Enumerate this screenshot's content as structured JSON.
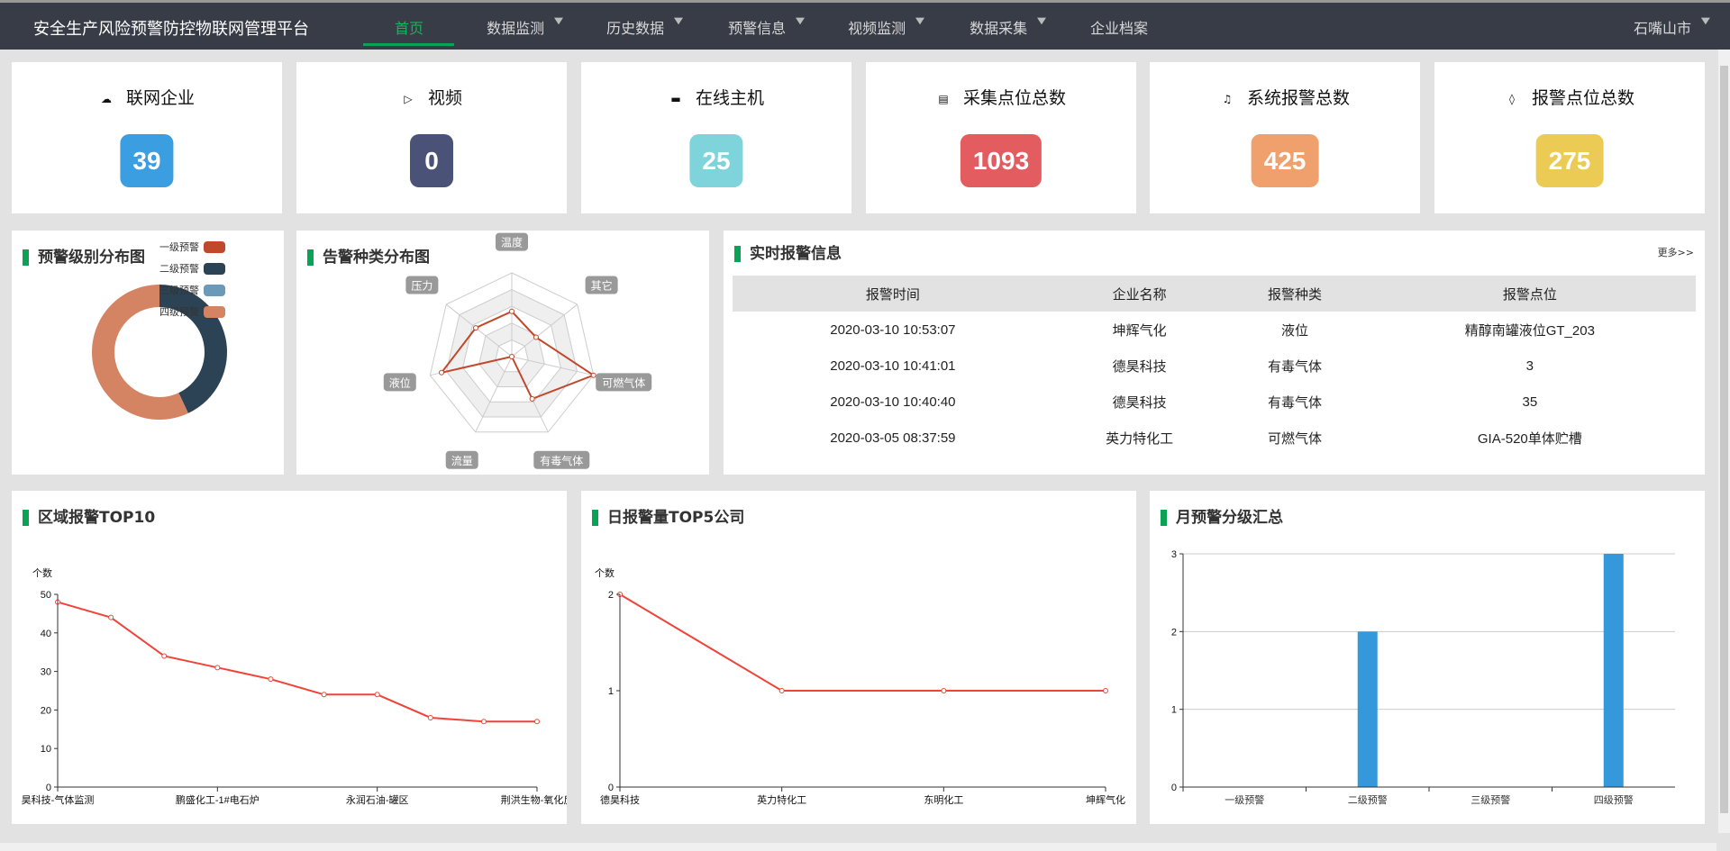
{
  "nav": {
    "title": "安全生产风险预警防控物联网管理平台",
    "items": [
      {
        "label": "首页",
        "dropdown": false,
        "active": true
      },
      {
        "label": "数据监测",
        "dropdown": true
      },
      {
        "label": "历史数据",
        "dropdown": true
      },
      {
        "label": "预警信息",
        "dropdown": true
      },
      {
        "label": "视频监测",
        "dropdown": true
      },
      {
        "label": "数据采集",
        "dropdown": true
      },
      {
        "label": "企业档案",
        "dropdown": false
      }
    ],
    "city": "石嘴山市"
  },
  "stats": [
    {
      "label": "联网企业",
      "value": "39",
      "color": "#3a9ee0",
      "icon": "cloud-upload-icon"
    },
    {
      "label": "视频",
      "value": "0",
      "color": "#4a5278",
      "icon": "video-icon"
    },
    {
      "label": "在线主机",
      "value": "25",
      "color": "#7fd3db",
      "icon": "monitor-icon"
    },
    {
      "label": "采集点位总数",
      "value": "1093",
      "color": "#e35d60",
      "icon": "calendar-icon"
    },
    {
      "label": "系统报警总数",
      "value": "425",
      "color": "#f0a06c",
      "icon": "bell-icon"
    },
    {
      "label": "报警点位总数",
      "value": "275",
      "color": "#eccb55",
      "icon": "speaker-icon"
    }
  ],
  "donut": {
    "title": "预警级别分布图",
    "legend": [
      {
        "name": "一级预警",
        "color": "#c0482b"
      },
      {
        "name": "二级预警",
        "color": "#2c4355"
      },
      {
        "name": "三级预警",
        "color": "#6a9ab8"
      },
      {
        "name": "四级预警",
        "color": "#d48363"
      }
    ],
    "values_percent": [
      0,
      43,
      0,
      57
    ]
  },
  "radar": {
    "title": "告警种类分布图",
    "indicators": [
      "温度",
      "其它",
      "可燃气体",
      "有毒气体",
      "流量",
      "液位",
      "压力"
    ],
    "values_fraction": [
      0.54,
      0.37,
      1.0,
      0.56,
      0.0,
      0.86,
      0.55
    ],
    "color": "#c0482b"
  },
  "alarms": {
    "title": "实时报警信息",
    "more": "更多>>",
    "columns": [
      "报警时间",
      "企业名称",
      "报警种类",
      "报警点位"
    ],
    "rows": [
      [
        "2020-03-10 10:53:07",
        "坤辉气化",
        "液位",
        "精醇南罐液位GT_203"
      ],
      [
        "2020-03-10 10:41:01",
        "德昊科技",
        "有毒气体",
        "3"
      ],
      [
        "2020-03-10 10:40:40",
        "德昊科技",
        "有毒气体",
        "35"
      ],
      [
        "2020-03-05 08:37:59",
        "英力特化工",
        "可燃气体",
        "GIA-520单体贮槽"
      ]
    ]
  },
  "chart_data": [
    {
      "type": "line",
      "title": "区域报警TOP10",
      "ylabel": "个数",
      "ylim": [
        0,
        50
      ],
      "yticks": [
        0,
        10,
        20,
        30,
        40,
        50
      ],
      "categories": [
        "昊科技-气体监测",
        "",
        "",
        "鹏盛化工-1#电石炉",
        "",
        "",
        "永润石油-罐区",
        "",
        "",
        "荆洪生物-氧化反"
      ],
      "values": [
        48,
        44,
        34,
        31,
        28,
        24,
        24,
        18,
        17,
        17
      ],
      "color": "#f0443a"
    },
    {
      "type": "line",
      "title": "日报警量TOP5公司",
      "ylabel": "个数",
      "ylim": [
        0,
        2
      ],
      "yticks": [
        0,
        1,
        2
      ],
      "categories": [
        "德昊科技",
        "英力特化工",
        "东明化工",
        "坤辉气化"
      ],
      "values": [
        2,
        1,
        1,
        1
      ],
      "color": "#f0443a"
    },
    {
      "type": "bar",
      "title": "月预警分级汇总",
      "ylim": [
        0,
        3
      ],
      "yticks": [
        0,
        1,
        2,
        3
      ],
      "grid": true,
      "categories": [
        "一级预警",
        "二级预警",
        "三级预警",
        "四级预警"
      ],
      "values": [
        0,
        2,
        0,
        3
      ],
      "color": "#3498db"
    }
  ]
}
